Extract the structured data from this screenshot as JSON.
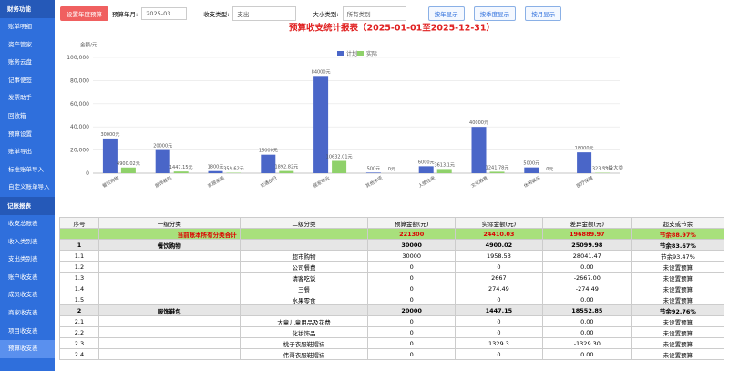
{
  "sidebar": {
    "sections": [
      {
        "title": "财务功能",
        "items": [
          "账单明细",
          "资产管家",
          "账务云盘",
          "记事便签",
          "发票助手",
          "回收箱",
          "预算设置",
          "账单导出",
          "标准账单导入",
          "自定义账单导入"
        ]
      },
      {
        "title": "记账报表",
        "items": [
          "收支总账表",
          "收入类别表",
          "支出类别表",
          "账户收支表",
          "成员收支表",
          "商家收支表",
          "项目收支表",
          "预算收支表"
        ]
      }
    ]
  },
  "toolbar": {
    "set_button": "设置年度预算",
    "month_label": "预算年月:",
    "month_value": "2025-03",
    "type_label": "收支类型:",
    "type_value": "支出",
    "cat_label": "大小类别:",
    "cat_value": "所有类别",
    "buttons": [
      "按年显示",
      "按季度显示",
      "按月显示"
    ]
  },
  "chart_data": {
    "type": "bar",
    "title": "预算收支统计报表（2025-01-01至2025-12-31）",
    "y_label": "金额/元",
    "x_label": "一级大类",
    "categories": [
      "餐饮购物",
      "服饰鞋包",
      "家居家装",
      "交通出行",
      "居家物业",
      "其他杂项",
      "人情往来",
      "文化教育",
      "休闲娱乐",
      "医疗保健"
    ],
    "series": [
      {
        "name": "计划",
        "color": "#4a66c8",
        "values": [
          30000,
          20000,
          1800,
          16000,
          84000,
          500,
          6000,
          40000,
          5000,
          18000
        ],
        "value_labels": [
          "30000元",
          "20000元",
          "1800元",
          "16000元",
          "84000元",
          "500元",
          "6000元",
          "40000元",
          "5000元",
          "18000元"
        ]
      },
      {
        "name": "实际",
        "color": "#8fd16a",
        "values": [
          4900.02,
          1447.15,
          359.62,
          1892.82,
          10632.01,
          0,
          3613.1,
          1241.78,
          0,
          323.53
        ],
        "value_labels": [
          "4900.02元",
          "1447.15元",
          "359.62元",
          "1892.82元",
          "10632.01元",
          "0元",
          "3613.1元",
          "1241.78元",
          "0元",
          "323.53元"
        ]
      }
    ],
    "ylim": [
      0,
      100000
    ],
    "yticks": [
      0,
      {
        "value": 20000,
        "label": "20,000"
      },
      {
        "value": 40000,
        "label": "40,000"
      },
      {
        "value": 60000,
        "label": "60,000"
      },
      {
        "value": 80000,
        "label": "80,000"
      },
      {
        "value": 100000,
        "label": "100,000"
      }
    ],
    "grid": true
  },
  "table": {
    "headers": [
      "序号",
      "一级分类",
      "二级分类",
      "预算金额(元)",
      "实际金额(元)",
      "差异金额(元)",
      "超支或节余"
    ],
    "rows": [
      [
        null,
        "当前账本所有分类合计",
        null,
        "221300",
        "24410.03",
        "196889.97",
        "节余88.97%"
      ],
      [
        "1",
        "餐饮购物",
        null,
        "30000",
        "4900.02",
        "25099.98",
        "节余83.67%"
      ],
      [
        "1.1",
        null,
        "超市购物",
        "30000",
        "1958.53",
        "28041.47",
        "节余93.47%"
      ],
      [
        "1.2",
        null,
        "公司餐费",
        "0",
        "0",
        "0.00",
        "未设置预算"
      ],
      [
        "1.3",
        null,
        "请客吃饭",
        "0",
        "2667",
        "-2667.00",
        "未设置预算"
      ],
      [
        "1.4",
        null,
        "三餐",
        "0",
        "274.49",
        "-274.49",
        "未设置预算"
      ],
      [
        "1.5",
        null,
        "水果零食",
        "0",
        "0",
        "0.00",
        "未设置预算"
      ],
      [
        "2",
        "服饰鞋包",
        null,
        "20000",
        "1447.15",
        "18552.85",
        "节余92.76%"
      ],
      [
        "2.1",
        null,
        "大童儿童用品及花费",
        "0",
        "0",
        "0.00",
        "未设置预算"
      ],
      [
        "2.2",
        null,
        "化妆饰品",
        "0",
        "0",
        "0.00",
        "未设置预算"
      ],
      [
        "2.3",
        null,
        "桃子衣服鞋帽袜",
        "0",
        "1329.3",
        "-1329.30",
        "未设置预算"
      ],
      [
        "2.4",
        null,
        "伟哥衣服鞋帽袜",
        "0",
        "0",
        "0.00",
        "未设置预算"
      ]
    ]
  }
}
